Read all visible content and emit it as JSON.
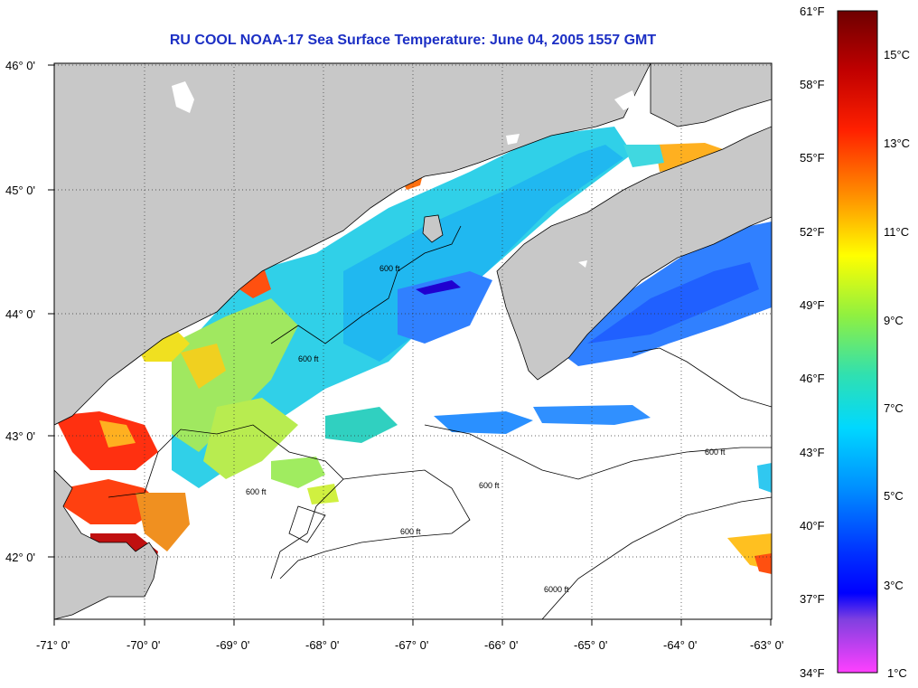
{
  "title": "RU COOL  NOAA-17  Sea Surface Temperature:  June 04, 2005 1557 GMT",
  "map": {
    "lon_range": [
      -71,
      -63
    ],
    "lat_range": [
      41.5,
      46.1
    ],
    "lat_ticks": [
      "46° 0'",
      "45° 0'",
      "44° 0'",
      "43° 0'",
      "42° 0'"
    ],
    "lon_ticks": [
      "-71° 0'",
      "-70° 0'",
      "-69° 0'",
      "-68° 0'",
      "-67° 0'",
      "-66° 0'",
      "-65° 0'",
      "-64° 0'",
      "-63° 0'"
    ],
    "land_color": "#c8c8c8",
    "cloud_color": "#ffffff",
    "grid": "dotted",
    "contour_label": "600 ft",
    "deep_contour_label": "6000 ft"
  },
  "colorbar": {
    "fahrenheit_labels": [
      "61°F",
      "58°F",
      "55°F",
      "52°F",
      "49°F",
      "46°F",
      "43°F",
      "40°F",
      "37°F",
      "34°F"
    ],
    "celsius_labels": [
      "15°C",
      "13°C",
      "11°C",
      "9°C",
      "7°C",
      "5°C",
      "3°C",
      "1°C"
    ],
    "colors": [
      "#7a0000",
      "#ff1a00",
      "#ffa000",
      "#ffff00",
      "#40e080",
      "#00ffff",
      "#0060ff",
      "#0000ff",
      "#ff40ff"
    ]
  }
}
